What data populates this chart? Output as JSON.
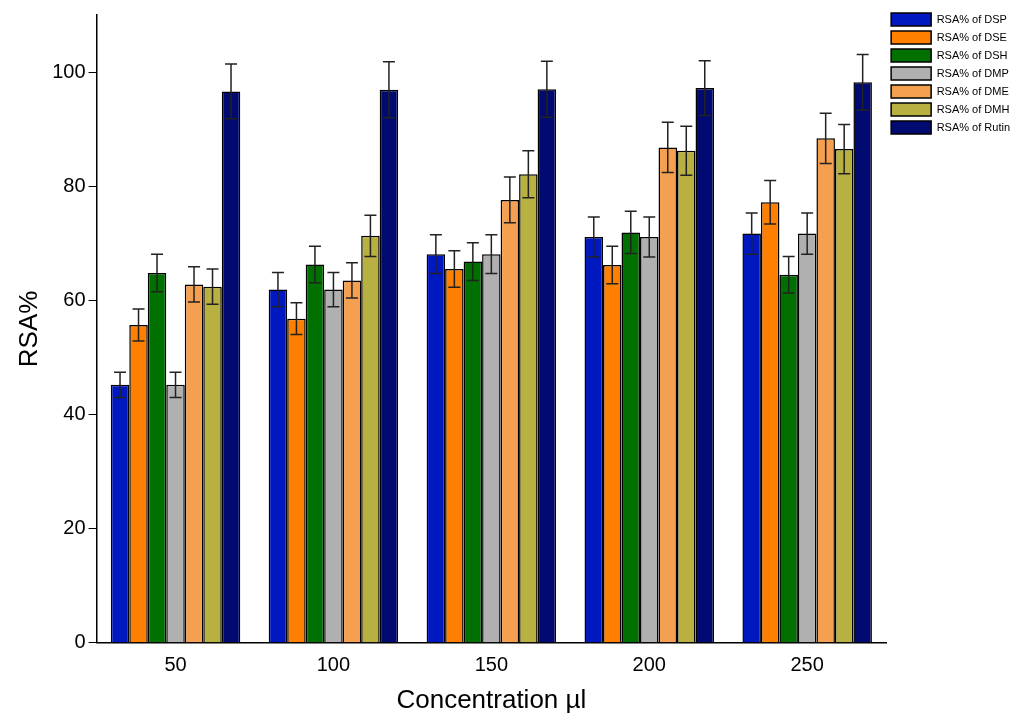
{
  "chart_data": {
    "type": "bar",
    "xlabel": "Concentration µl",
    "ylabel": "RSA%",
    "categories": [
      "50",
      "100",
      "150",
      "200",
      "250"
    ],
    "series": [
      {
        "name": "RSA% of DSP",
        "color": "#0018c0",
        "values": [
          45.2,
          61.9,
          68.1,
          71.1,
          71.7
        ],
        "errors": [
          2.2,
          3,
          3.4,
          3.5,
          3.6
        ]
      },
      {
        "name": "RSA% of DSE",
        "color": "#ff8000",
        "values": [
          55.7,
          56.8,
          65.5,
          66.2,
          77.2
        ],
        "errors": [
          2.8,
          2.8,
          3.2,
          3.3,
          3.8
        ]
      },
      {
        "name": "RSA% of DSH",
        "color": "#007000",
        "values": [
          64.8,
          66.3,
          66.8,
          71.9,
          64.5
        ],
        "errors": [
          3.3,
          3.2,
          3.3,
          3.7,
          3.2
        ]
      },
      {
        "name": "RSA% of DMP",
        "color": "#b0b0b0",
        "values": [
          45.2,
          61.9,
          68.1,
          71.1,
          71.7
        ],
        "errors": [
          2.2,
          3,
          3.4,
          3.5,
          3.6
        ]
      },
      {
        "name": "RSA% of DME",
        "color": "#f5a050",
        "values": [
          62.8,
          63.5,
          77.6,
          86.8,
          88.4
        ],
        "errors": [
          3.1,
          3.1,
          4,
          4.4,
          4.4
        ]
      },
      {
        "name": "RSA% of DMH",
        "color": "#b8b040",
        "values": [
          62.4,
          71.3,
          82.1,
          86.2,
          86.5
        ],
        "errors": [
          3.1,
          3.6,
          4.1,
          4.3,
          4.3
        ]
      },
      {
        "name": "RSA% of Rutin",
        "color": "#000a70",
        "values": [
          96.6,
          96.9,
          97,
          97.2,
          98.2
        ],
        "errors": [
          4.8,
          4.9,
          4.9,
          4.8,
          4.9
        ]
      }
    ],
    "ylim": [
      0,
      110
    ],
    "yticks": [
      0,
      20,
      40,
      60,
      80,
      100
    ],
    "grid": false,
    "legend": "top right"
  }
}
